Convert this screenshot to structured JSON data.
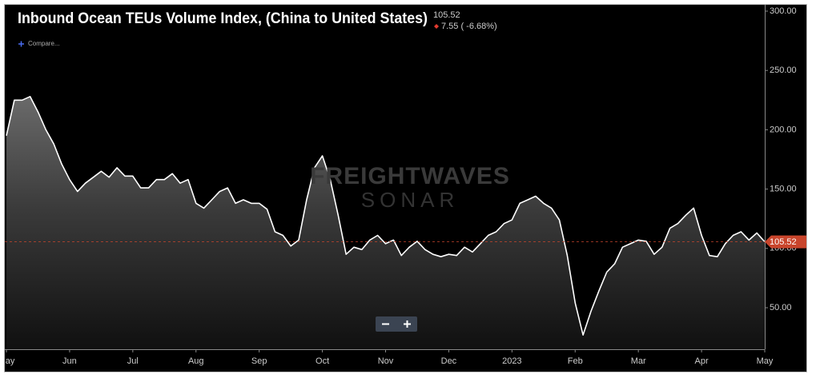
{
  "chart_data": {
    "type": "area",
    "title": "Inbound Ocean TEUs Volume Index, (China to United States)",
    "change_label": "7.55 ( -6.68%)",
    "compare_label": "Compare...",
    "watermark_top": "FREIGHTWAVES",
    "watermark_bottom": "SONAR",
    "categories": [
      "May",
      null,
      null,
      null,
      null,
      null,
      null,
      null,
      "Jun",
      null,
      null,
      null,
      null,
      null,
      null,
      null,
      "Jul",
      null,
      null,
      null,
      null,
      null,
      null,
      null,
      "Aug",
      null,
      null,
      null,
      null,
      null,
      null,
      null,
      "Sep",
      null,
      null,
      null,
      null,
      null,
      null,
      null,
      "Oct",
      null,
      null,
      null,
      null,
      null,
      null,
      null,
      "Nov",
      null,
      null,
      null,
      null,
      null,
      null,
      null,
      "Dec",
      null,
      null,
      null,
      null,
      null,
      null,
      null,
      "2023",
      null,
      null,
      null,
      null,
      null,
      null,
      null,
      "Feb",
      null,
      null,
      null,
      null,
      null,
      null,
      null,
      "Mar",
      null,
      null,
      null,
      null,
      null,
      null,
      null,
      "Apr",
      null,
      null,
      null,
      null,
      null,
      null,
      null,
      "May"
    ],
    "values": [
      195,
      225,
      225,
      228,
      215,
      200,
      188,
      171,
      158,
      148,
      155,
      160,
      165,
      160,
      168,
      161,
      161,
      151,
      151,
      158,
      158,
      163,
      155,
      158,
      138,
      134,
      141,
      148,
      151,
      138,
      141,
      138,
      138,
      133,
      114,
      111,
      102,
      107,
      141,
      168,
      178,
      158,
      128,
      95,
      101,
      99,
      107,
      111,
      104,
      107,
      94,
      101,
      106,
      99,
      95,
      93,
      95,
      94,
      101,
      97,
      104,
      111,
      114,
      121,
      124,
      138,
      141,
      144,
      138,
      134,
      124,
      94,
      54,
      27,
      47,
      64,
      80,
      87,
      101,
      104,
      107,
      106,
      95,
      101,
      117,
      121,
      128,
      134,
      111,
      94,
      93,
      104,
      111,
      114,
      107,
      113,
      105.52
    ],
    "color": "#ffffff",
    "ylim": [
      15,
      304
    ],
    "yticks": [
      {
        "value": 50,
        "label": "50.00"
      },
      {
        "value": 100,
        "label": "100.00"
      },
      {
        "value": 150,
        "label": "150.00"
      },
      {
        "value": 200,
        "label": "200.00"
      },
      {
        "value": 250,
        "label": "250.00"
      },
      {
        "value": 300,
        "label": "300.00"
      }
    ],
    "tag_color": "#c8452c"
  }
}
